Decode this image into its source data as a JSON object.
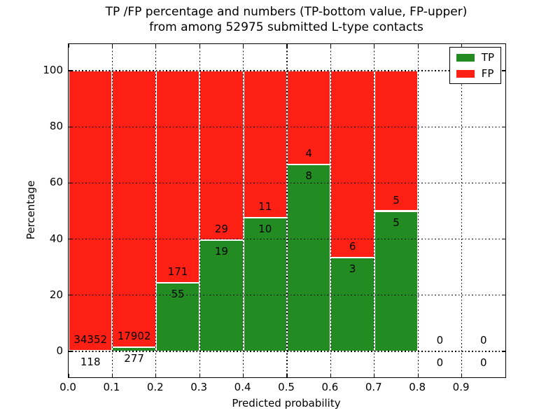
{
  "title": {
    "line1": "TP /FP percentage and numbers (TP-bottom value, FP-upper)",
    "line2": "from among 52975 submitted L-type contacts"
  },
  "colors": {
    "tp": "#228b22",
    "fp": "#ff2015",
    "grid": "#000000",
    "axis": "#000000",
    "background": "#ffffff"
  },
  "legend": {
    "items": [
      {
        "label": "TP",
        "color": "#228b22"
      },
      {
        "label": "FP",
        "color": "#ff2015"
      }
    ]
  },
  "chart_data": {
    "type": "bar",
    "stacked": true,
    "normalized_to_percent": true,
    "title": "TP /FP percentage and numbers (TP-bottom value, FP-upper)\nfrom among 52975 submitted L-type contacts",
    "total_submitted": 52975,
    "xlabel": "Predicted probability",
    "ylabel": "Percentage",
    "xlim": [
      0.0,
      1.0
    ],
    "ylim": [
      -9.25,
      109.5
    ],
    "x_ticks": [
      0.0,
      0.1,
      0.2,
      0.3,
      0.4,
      0.5,
      0.6,
      0.7,
      0.8,
      0.9
    ],
    "x_tick_labels": [
      "0.0",
      "0.1",
      "0.2",
      "0.3",
      "0.4",
      "0.5",
      "0.6",
      "0.7",
      "0.8",
      "0.9"
    ],
    "y_ticks": [
      0,
      20,
      40,
      60,
      80,
      100
    ],
    "y_tick_labels": [
      "0",
      "20",
      "40",
      "60",
      "80",
      "100"
    ],
    "grid": "dotted",
    "legend_position": "upper right",
    "series": [
      {
        "name": "TP",
        "color": "#228b22"
      },
      {
        "name": "FP",
        "color": "#ff2015"
      }
    ],
    "bins": [
      {
        "range": [
          0.0,
          0.1
        ],
        "tp": 118,
        "fp": 34352,
        "tp_pct": 0.34,
        "fp_pct": 99.66
      },
      {
        "range": [
          0.1,
          0.2
        ],
        "tp": 277,
        "fp": 17902,
        "tp_pct": 1.52,
        "fp_pct": 98.48
      },
      {
        "range": [
          0.2,
          0.3
        ],
        "tp": 55,
        "fp": 171,
        "tp_pct": 24.34,
        "fp_pct": 75.66
      },
      {
        "range": [
          0.3,
          0.4
        ],
        "tp": 19,
        "fp": 29,
        "tp_pct": 39.58,
        "fp_pct": 60.42
      },
      {
        "range": [
          0.4,
          0.5
        ],
        "tp": 10,
        "fp": 11,
        "tp_pct": 47.62,
        "fp_pct": 52.38
      },
      {
        "range": [
          0.5,
          0.6
        ],
        "tp": 8,
        "fp": 4,
        "tp_pct": 66.67,
        "fp_pct": 33.33
      },
      {
        "range": [
          0.6,
          0.7
        ],
        "tp": 3,
        "fp": 6,
        "tp_pct": 33.33,
        "fp_pct": 66.67
      },
      {
        "range": [
          0.7,
          0.8
        ],
        "tp": 5,
        "fp": 5,
        "tp_pct": 50.0,
        "fp_pct": 50.0
      },
      {
        "range": [
          0.8,
          0.9
        ],
        "tp": 0,
        "fp": 0,
        "tp_pct": 0,
        "fp_pct": 0
      },
      {
        "range": [
          0.9,
          1.0
        ],
        "tp": 0,
        "fp": 0,
        "tp_pct": 0,
        "fp_pct": 0
      }
    ]
  }
}
